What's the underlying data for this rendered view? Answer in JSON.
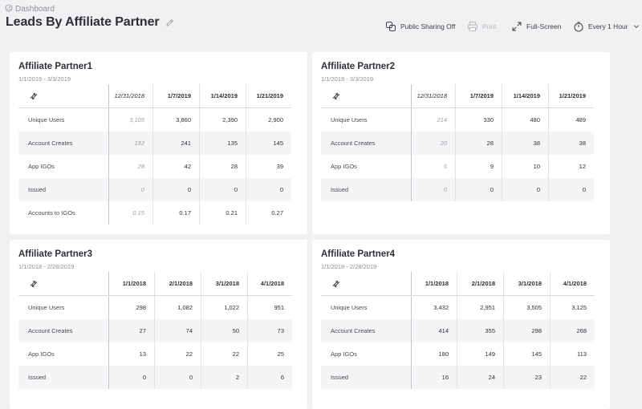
{
  "breadcrumb": {
    "label": "Dashboard"
  },
  "page": {
    "title": "Leads By Affiliate Partner"
  },
  "toolbar": {
    "public_sharing": "Public Sharing Off",
    "print": "Print",
    "fullscreen": "Full-Screen",
    "refresh": "Every 1 Hour"
  },
  "panels": [
    {
      "title": "Affiliate Partner1",
      "range": "1/1/2019 - 3/3/2019",
      "columns": [
        "12/31/2018",
        "1/7/2019",
        "1/14/2019",
        "1/21/2019"
      ],
      "rows": [
        {
          "label": "Unique Users",
          "values": [
            "3,105",
            "3,860",
            "2,390",
            "2,900"
          ]
        },
        {
          "label": "Account Creates",
          "values": [
            "182",
            "241",
            "135",
            "145"
          ]
        },
        {
          "label": "App IGOs",
          "values": [
            "28",
            "42",
            "28",
            "39"
          ]
        },
        {
          "label": "Issued",
          "values": [
            "0",
            "0",
            "0",
            "0"
          ]
        },
        {
          "label": "Accounts to IGOs",
          "values": [
            "0.15",
            "0.17",
            "0.21",
            "0.27"
          ]
        }
      ]
    },
    {
      "title": "Affiliate Partner2",
      "range": "1/1/2019 - 3/3/2019",
      "columns": [
        "12/31/2018",
        "1/7/2019",
        "1/14/2019",
        "1/21/2019"
      ],
      "rows": [
        {
          "label": "Unique Users",
          "values": [
            "214",
            "330",
            "480",
            "489"
          ]
        },
        {
          "label": "Account Creates",
          "values": [
            "20",
            "28",
            "38",
            "38"
          ]
        },
        {
          "label": "App IGOs",
          "values": [
            "6",
            "9",
            "10",
            "12"
          ]
        },
        {
          "label": "Issued",
          "values": [
            "0",
            "0",
            "0",
            "0"
          ]
        }
      ]
    },
    {
      "title": "Affiliate Partner3",
      "range": "1/1/2018 - 2/28/2019",
      "columns": [
        "1/1/2018",
        "2/1/2018",
        "3/1/2018",
        "4/1/2018"
      ],
      "rows": [
        {
          "label": "Unique Users",
          "values": [
            "298",
            "1,082",
            "1,022",
            "951"
          ]
        },
        {
          "label": "Account Creates",
          "values": [
            "27",
            "74",
            "50",
            "73"
          ]
        },
        {
          "label": "App IGOs",
          "values": [
            "13",
            "22",
            "22",
            "25"
          ]
        },
        {
          "label": "Issued",
          "values": [
            "0",
            "0",
            "2",
            "6"
          ]
        }
      ]
    },
    {
      "title": "Affiliate Partner4",
      "range": "1/1/2018 - 2/28/2019",
      "columns": [
        "1/1/2018",
        "2/1/2018",
        "3/1/2018",
        "4/1/2018"
      ],
      "rows": [
        {
          "label": "Unique Users",
          "values": [
            "3,432",
            "2,951",
            "3,505",
            "3,125"
          ]
        },
        {
          "label": "Account Creates",
          "values": [
            "414",
            "355",
            "298",
            "268"
          ]
        },
        {
          "label": "App IGOs",
          "values": [
            "180",
            "149",
            "145",
            "113"
          ]
        },
        {
          "label": "Issued",
          "values": [
            "16",
            "24",
            "23",
            "22"
          ]
        }
      ]
    }
  ],
  "colors": {
    "background": "#f1f1f3",
    "panel": "#ffffff",
    "stripe": "#f5f5f7",
    "faded_text": "#9da0a8"
  },
  "icons": {
    "breadcrumb": "dashboard-icon",
    "edit": "pencil-icon",
    "share": "share-link-icon",
    "print": "printer-icon",
    "fullscreen": "expand-icon",
    "refresh": "stopwatch-icon",
    "dropdown": "chevron-down-icon",
    "pivot": "swap-arrows-icon"
  }
}
